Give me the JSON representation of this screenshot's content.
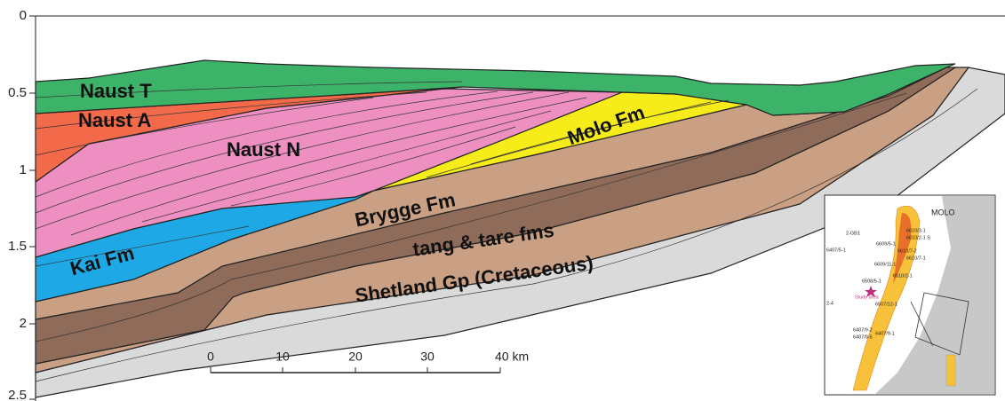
{
  "depth_axis": {
    "ticks": [
      "0",
      "0.5",
      "1",
      "1.5",
      "2",
      "2.5"
    ]
  },
  "formations": [
    "Naust T",
    "Naust A",
    "Naust N",
    "Molo Fm",
    "Kai Fm",
    "Brygge Fm",
    "tang & tare fms",
    "Shetland Gp (Cretaceous)"
  ],
  "scale_bar": {
    "ticks": [
      "0",
      "10",
      "20",
      "30",
      "40 km"
    ]
  },
  "inset": {
    "labels": [
      "MOLO",
      "6610/3-1",
      "6610/2-1 S",
      "6609/5-1",
      "6610/7-2",
      "6609/11-1",
      "6610/7-1",
      "6510/2-1",
      "6508/5-1",
      "Study area",
      "6507/12-1",
      "6407/9-2",
      "6407/9-5",
      "6407/9-1",
      "2-GB1",
      "6407/5-1",
      "2-4"
    ]
  }
}
